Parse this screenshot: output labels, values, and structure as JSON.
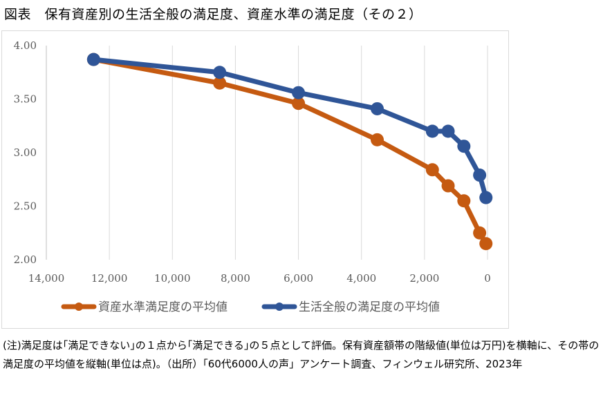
{
  "title": "図表　保有資産別の生活全般の満足度、資産水準の満足度（その２）",
  "note": "(注)満足度は｢満足できない｣の１点から｢満足できる｣の５点として評価。保有資産額帯の階級値(単位は万円)を横軸に、その帯の満足度の平均値を縦軸(単位は点)。（出所）「60代6000人の声」アンケート調査、フィンウェル研究所、2023年",
  "chart_data": {
    "type": "line",
    "xlim": [
      14000,
      0
    ],
    "ylim": [
      2.0,
      4.0
    ],
    "x_reversed": true,
    "x_ticks": [
      "14,000",
      "12,000",
      "10,000",
      "8,000",
      "6,000",
      "4,000",
      "2,000",
      "0"
    ],
    "y_ticks": [
      "2.00",
      "2.50",
      "3.00",
      "3.50",
      "4.00"
    ],
    "grid": "vertical",
    "legend_position": "bottom",
    "series": [
      {
        "name": "資産水準満足度の平均値",
        "color": "#c55a11",
        "x": [
          12500,
          8500,
          6000,
          3500,
          1750,
          1250,
          750,
          250,
          50
        ],
        "y": [
          3.87,
          3.65,
          3.46,
          3.12,
          2.84,
          2.69,
          2.55,
          2.25,
          2.15
        ]
      },
      {
        "name": "生活全般の満足度の平均値",
        "color": "#2f5597",
        "x": [
          12500,
          8500,
          6000,
          3500,
          1750,
          1250,
          750,
          250,
          50
        ],
        "y": [
          3.87,
          3.75,
          3.56,
          3.41,
          3.2,
          3.2,
          3.06,
          2.79,
          2.58
        ]
      }
    ]
  }
}
